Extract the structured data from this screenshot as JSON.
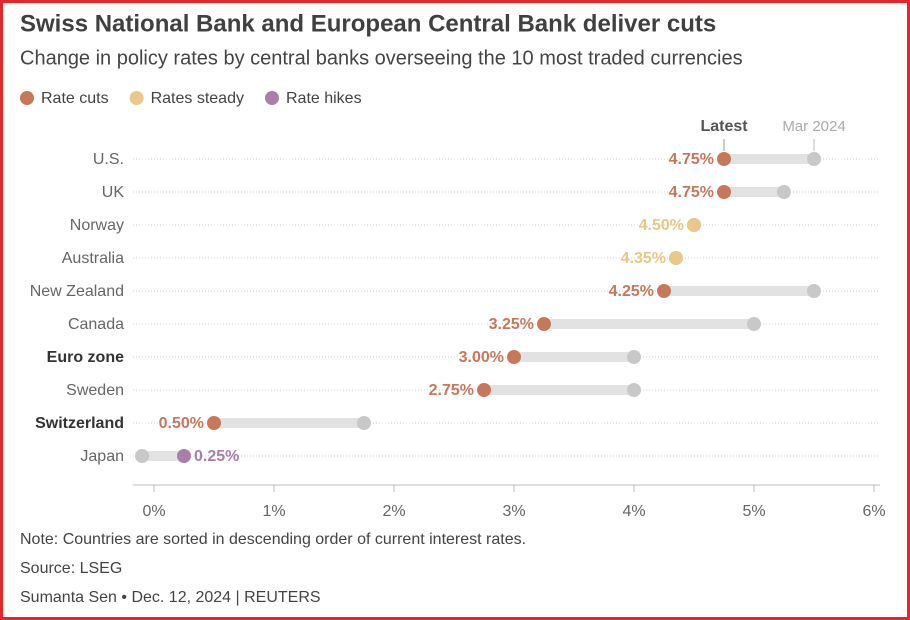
{
  "chart_data": {
    "type": "dumbbell",
    "title": "Swiss National Bank and European Central Bank deliver cuts",
    "subtitle": "Change in policy rates by central banks overseeing the 10 most traded currencies",
    "legend": [
      {
        "name": "Rate cuts",
        "color": "#c8785a"
      },
      {
        "name": "Rates steady",
        "color": "#e8c98a"
      },
      {
        "name": "Rate hikes",
        "color": "#a97fa9"
      }
    ],
    "categories": [
      "U.S.",
      "UK",
      "Norway",
      "Australia",
      "New Zealand",
      "Canada",
      "Euro zone",
      "Sweden",
      "Switzerland",
      "Japan"
    ],
    "bold": [
      false,
      false,
      false,
      false,
      false,
      false,
      true,
      false,
      true,
      false
    ],
    "series": [
      {
        "name": "Latest",
        "values": [
          4.75,
          4.75,
          4.5,
          4.35,
          4.25,
          3.25,
          3.0,
          2.75,
          0.5,
          0.25
        ],
        "value_labels": [
          "4.75%",
          "4.75%",
          "4.50%",
          "4.35%",
          "4.25%",
          "3.25%",
          "3.00%",
          "2.75%",
          "0.50%",
          "0.25%"
        ],
        "colors": [
          "#c8785a",
          "#c8785a",
          "#e8c98a",
          "#e8c98a",
          "#c8785a",
          "#c8785a",
          "#c8785a",
          "#c8785a",
          "#c8785a",
          "#a97fa9"
        ]
      },
      {
        "name": "Mar 2024",
        "values": [
          5.5,
          5.25,
          4.5,
          4.35,
          5.5,
          5.0,
          4.0,
          4.0,
          1.75,
          -0.1
        ],
        "color": "#c8c8c8"
      }
    ],
    "xlim": [
      -0.2,
      6.05
    ],
    "xticks": [
      {
        "value": 0,
        "label": "0%"
      },
      {
        "value": 1,
        "label": "1%"
      },
      {
        "value": 2,
        "label": "2%"
      },
      {
        "value": 3,
        "label": "3%"
      },
      {
        "value": 4,
        "label": "4%"
      },
      {
        "value": 5,
        "label": "5%"
      },
      {
        "value": 6,
        "label": "6%"
      }
    ],
    "note": "Note: Countries are sorted in descending order of current interest rates.",
    "source": "Source: LSEG",
    "byline": "Sumanta Sen • Dec. 12, 2024 | REUTERS"
  }
}
